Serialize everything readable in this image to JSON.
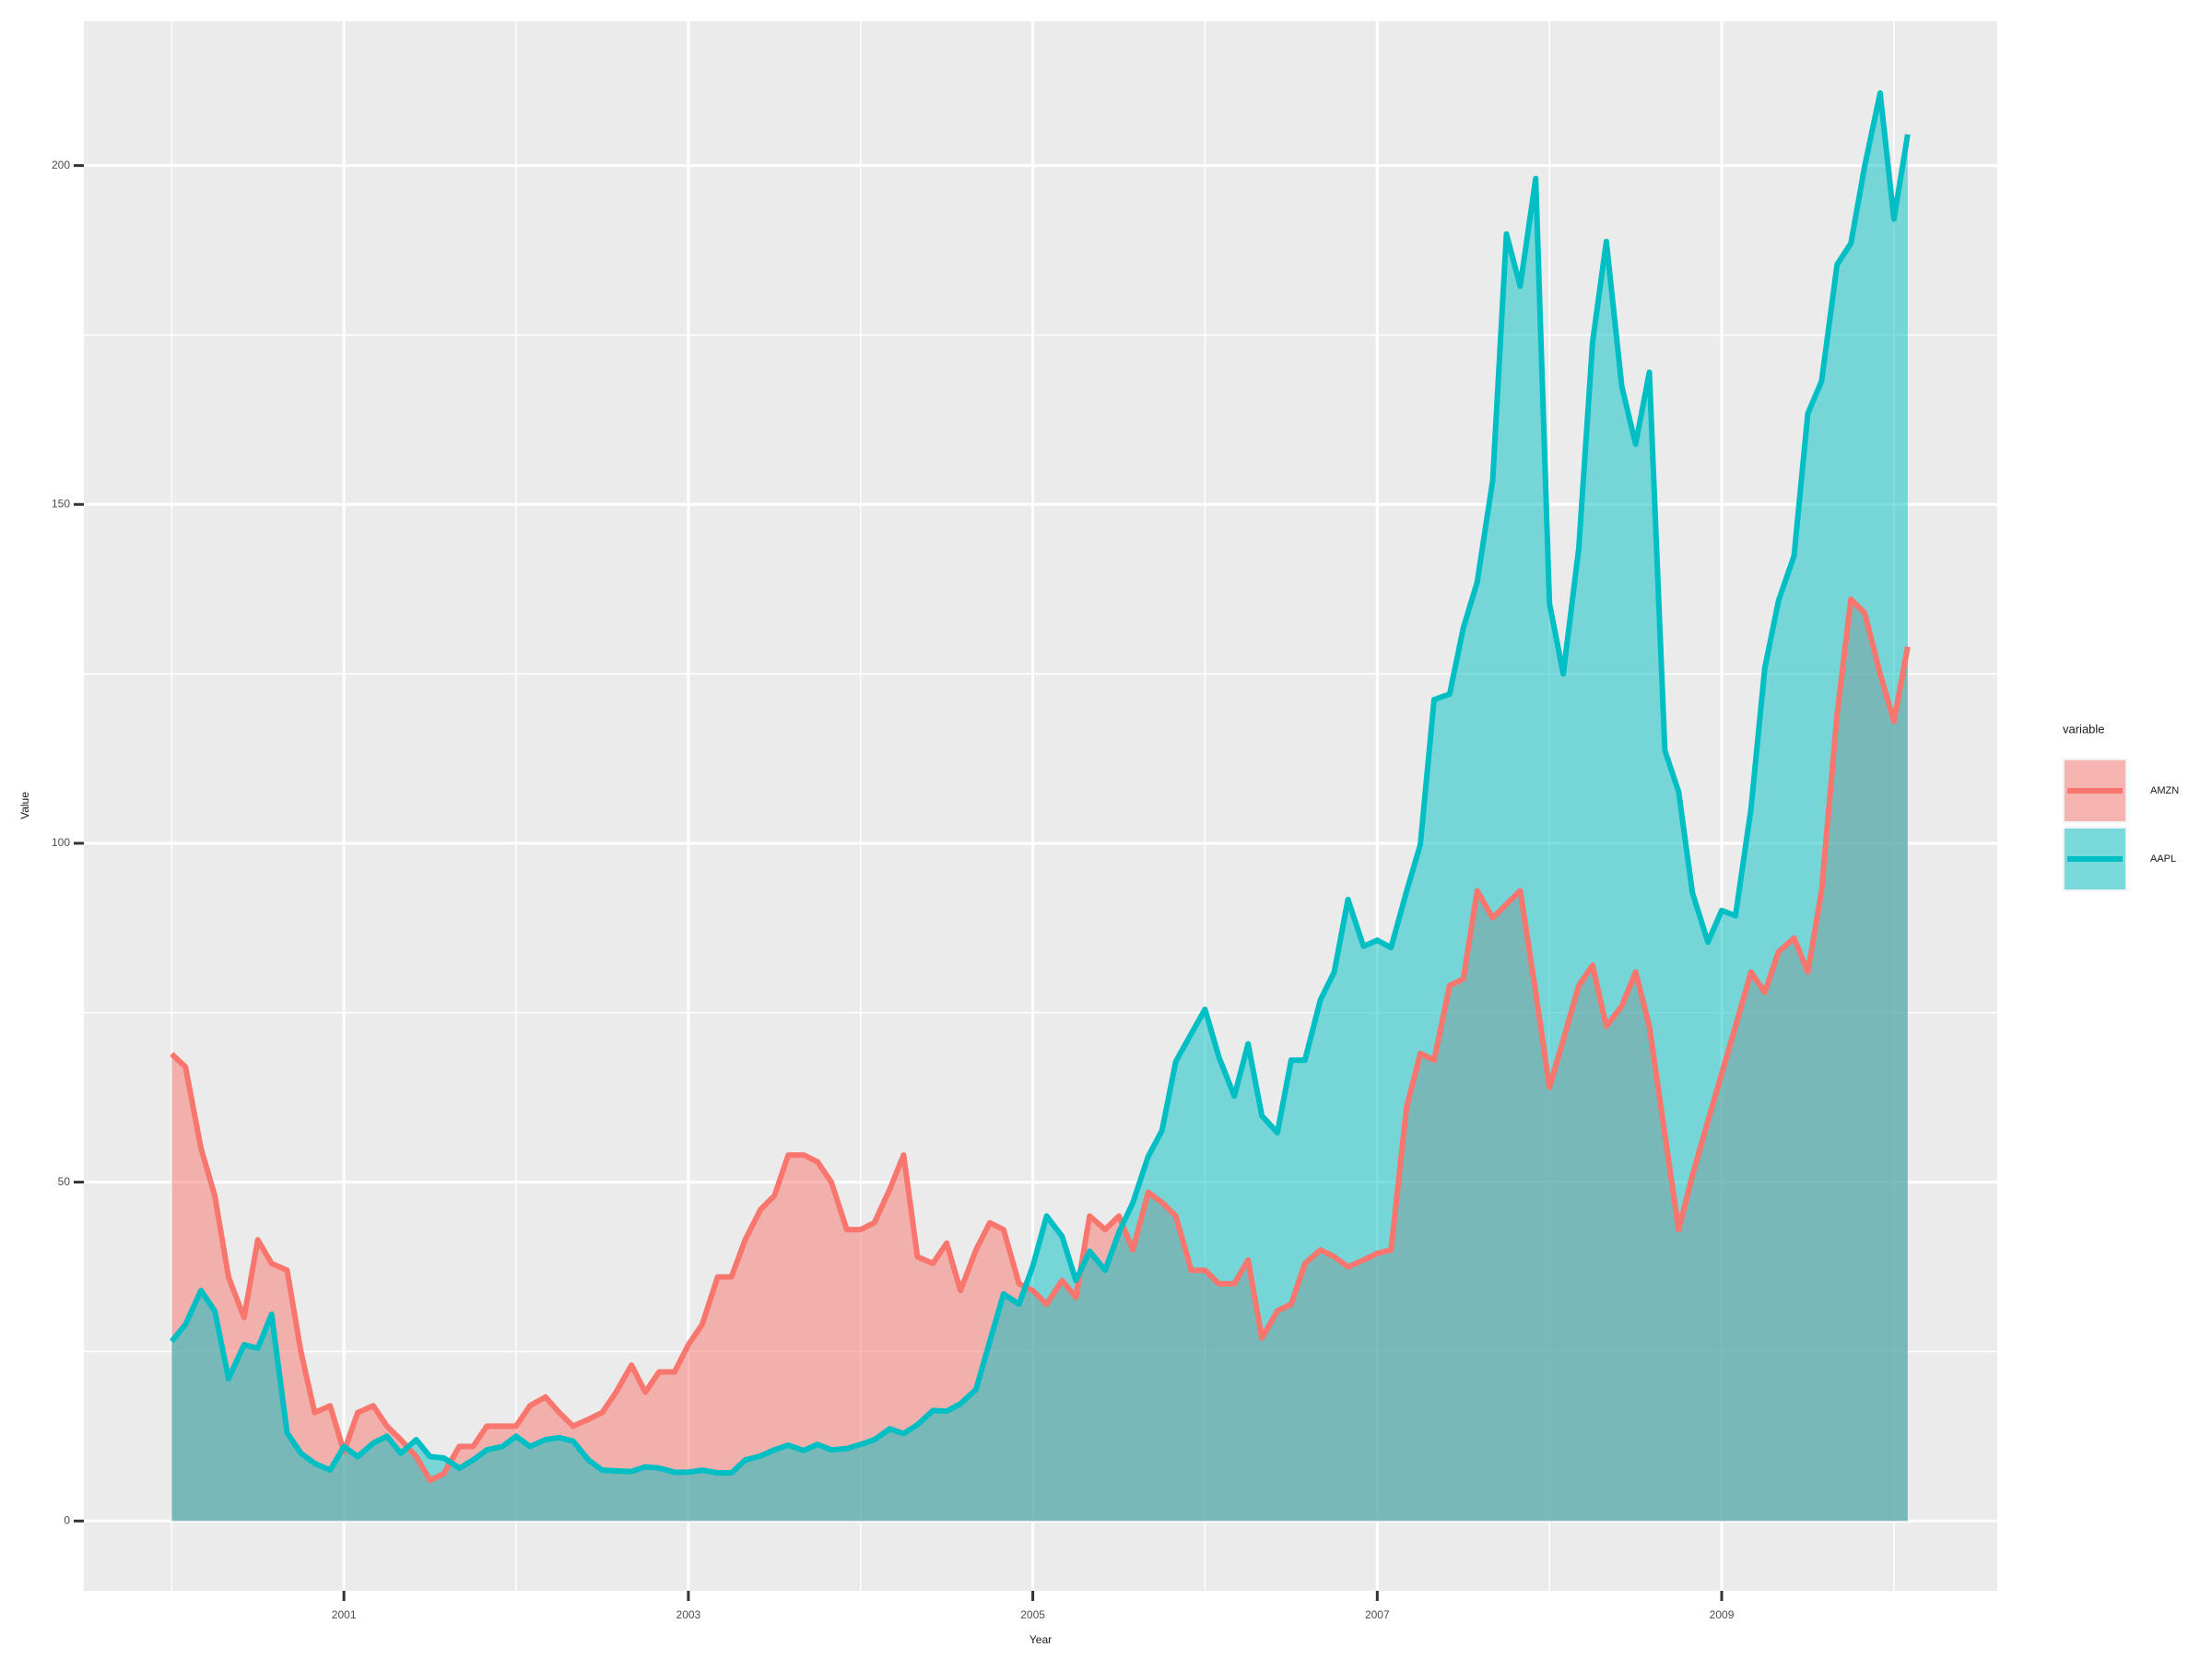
{
  "chart_data": {
    "type": "area",
    "x_label": "Year",
    "y_label": "Value",
    "legend_title": "variable",
    "legend_position": "right",
    "grid": true,
    "x": [
      2000.0,
      2000.08,
      2000.17,
      2000.25,
      2000.33,
      2000.42,
      2000.5,
      2000.58,
      2000.67,
      2000.75,
      2000.83,
      2000.92,
      2001.0,
      2001.08,
      2001.17,
      2001.25,
      2001.33,
      2001.42,
      2001.5,
      2001.58,
      2001.67,
      2001.75,
      2001.83,
      2001.92,
      2002.0,
      2002.08,
      2002.17,
      2002.25,
      2002.33,
      2002.42,
      2002.5,
      2002.58,
      2002.67,
      2002.75,
      2002.83,
      2002.92,
      2003.0,
      2003.08,
      2003.17,
      2003.25,
      2003.33,
      2003.42,
      2003.5,
      2003.58,
      2003.67,
      2003.75,
      2003.83,
      2003.92,
      2004.0,
      2004.08,
      2004.17,
      2004.25,
      2004.33,
      2004.42,
      2004.5,
      2004.58,
      2004.67,
      2004.75,
      2004.83,
      2004.92,
      2005.0,
      2005.08,
      2005.17,
      2005.25,
      2005.33,
      2005.42,
      2005.5,
      2005.58,
      2005.67,
      2005.75,
      2005.83,
      2005.92,
      2006.0,
      2006.08,
      2006.17,
      2006.25,
      2006.33,
      2006.42,
      2006.5,
      2006.58,
      2006.67,
      2006.75,
      2006.83,
      2006.92,
      2007.0,
      2007.08,
      2007.17,
      2007.25,
      2007.33,
      2007.42,
      2007.5,
      2007.58,
      2007.67,
      2007.75,
      2007.83,
      2007.92,
      2008.0,
      2008.08,
      2008.17,
      2008.25,
      2008.33,
      2008.42,
      2008.5,
      2008.58,
      2008.67,
      2008.75,
      2008.83,
      2008.92,
      2009.0,
      2009.08,
      2009.17,
      2009.25,
      2009.33,
      2009.42,
      2009.5,
      2009.58,
      2009.67,
      2009.75,
      2009.83,
      2009.92,
      2010.0,
      2010.08
    ],
    "series": [
      {
        "name": "AMZN",
        "color": "#F8766D",
        "values": [
          68.9,
          67,
          55,
          48,
          36,
          30,
          41.5,
          38,
          37,
          25,
          16,
          17,
          10.2,
          16,
          17,
          14,
          12,
          9.5,
          6,
          7,
          11,
          11,
          14,
          14,
          14,
          17,
          18.3,
          16,
          14,
          15,
          16,
          19,
          23,
          19,
          22,
          22,
          26,
          29,
          36,
          36,
          41.5,
          46,
          48,
          54,
          54,
          53,
          50,
          43,
          43,
          44,
          49,
          54,
          39,
          38,
          41,
          34,
          40,
          44,
          43,
          35,
          34,
          32,
          35.5,
          33,
          45,
          43,
          45,
          40,
          48.5,
          47,
          45,
          37,
          37,
          35,
          35,
          38.5,
          27,
          31,
          32,
          38,
          40,
          39,
          37.5,
          38.5,
          39.5,
          40,
          61,
          69,
          68,
          79,
          80,
          93,
          89,
          91,
          93,
          78,
          64,
          71,
          79,
          82,
          73,
          76,
          81,
          73,
          57,
          43,
          51,
          59,
          66,
          73,
          81,
          78,
          84,
          86,
          81,
          93,
          119,
          136,
          134,
          125,
          118,
          129
        ]
      },
      {
        "name": "AAPL",
        "color": "#00BFC4",
        "values": [
          26.5,
          29,
          34,
          31,
          21,
          26,
          25.5,
          30.5,
          13,
          10,
          8.5,
          7.5,
          11,
          9.5,
          11.5,
          12.5,
          10,
          12,
          9.5,
          9.3,
          7.8,
          9,
          10.5,
          11,
          12.5,
          11,
          12,
          12.3,
          11.8,
          9,
          7.5,
          7.4,
          7.3,
          8,
          7.8,
          7.2,
          7.2,
          7.5,
          7.1,
          7.1,
          9,
          9.6,
          10.5,
          11.2,
          10.4,
          11.3,
          10.5,
          10.7,
          11.3,
          12,
          13.6,
          12.9,
          14.2,
          16.3,
          16.2,
          17.3,
          19.4,
          26.5,
          33.5,
          32,
          37.6,
          45,
          42,
          35.5,
          39.8,
          37,
          42.6,
          46.9,
          53.8,
          57.6,
          67.8,
          71.9,
          75.5,
          68.5,
          62.7,
          70.4,
          59.8,
          57.3,
          68,
          68,
          76.9,
          81,
          91.7,
          84.8,
          85.7,
          84.6,
          92.9,
          99.8,
          121.2,
          122,
          131.8,
          138.5,
          153.5,
          189.9,
          182.2,
          198.1,
          135.4,
          125,
          143.5,
          173.9,
          188.8,
          167.4,
          158.9,
          169.5,
          113.7,
          107.6,
          92.7,
          85.4,
          90.1,
          89.3,
          105.1,
          125.8,
          135.8,
          142.4,
          163.4,
          168.2,
          185.4,
          188.5,
          199.9,
          210.7,
          192.1,
          204.6
        ]
      }
    ],
    "xlim": [
      1999.49,
      2010.6
    ],
    "ylim": [
      -10.3,
      221.3
    ],
    "xticks": [
      2001,
      2003,
      2005,
      2007,
      2009
    ],
    "yticks": [
      0,
      50,
      100,
      150,
      200
    ]
  }
}
